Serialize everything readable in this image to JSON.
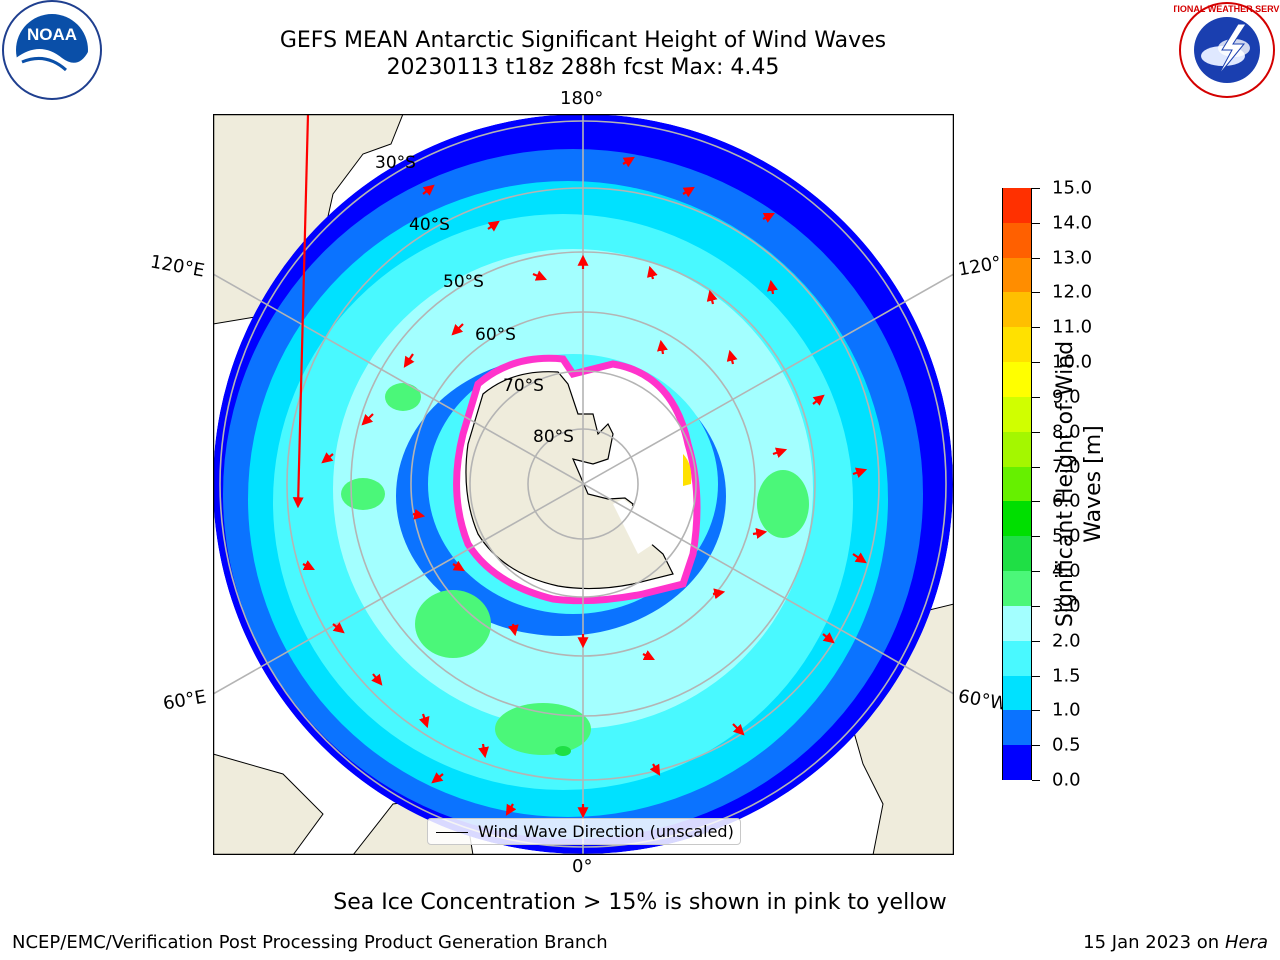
{
  "header": {
    "title_line1": "GEFS MEAN Antarctic Significant Height of Wind Waves",
    "title_line2": "20230113 t18z 288h fcst   Max: 4.45"
  },
  "logos": {
    "left": {
      "icon": "noaa-logo-icon",
      "text": "NOAA"
    },
    "right": {
      "icon": "national-weather-service-logo-icon",
      "text": "NATIONAL WEATHER SERVICE"
    }
  },
  "map": {
    "longitude_labels": {
      "top": "180°",
      "bottom": "0°",
      "upper_left": "120°E",
      "upper_right": "120°",
      "lower_left": "60°E",
      "lower_right": "60°W"
    },
    "latitude_labels": [
      "30°S",
      "40°S",
      "50°S",
      "60°S",
      "70°S",
      "80°S"
    ],
    "legend_text": "Wind Wave Direction (unscaled)",
    "colors": {
      "land": "#efecdc",
      "ocean_background": "#0000ff",
      "arrow": "#ff0000",
      "grid": "#b4b4b4"
    }
  },
  "colorbar": {
    "label": "Significant Height of Wind Waves [m]",
    "ticks": [
      "0.0",
      "0.5",
      "1.0",
      "1.5",
      "2.0",
      "3.0",
      "4.0",
      "5.0",
      "6.0",
      "7.0",
      "8.0",
      "9.0",
      "10.0",
      "11.0",
      "12.0",
      "13.0",
      "14.0",
      "15.0"
    ],
    "colors": [
      "#0000ff",
      "#0b73ff",
      "#00e1ff",
      "#49f9ff",
      "#a3ffff",
      "#4bf779",
      "#1fdf45",
      "#00df00",
      "#66f000",
      "#a4f700",
      "#d0ff00",
      "#ffff00",
      "#ffe100",
      "#ffbf00",
      "#ff8d00",
      "#ff6000",
      "#ff3000",
      "#ff0000"
    ]
  },
  "footer": {
    "caption": "Sea Ice Concentration > 15% is shown in pink to yellow",
    "left": "NCEP/EMC/Verification Post Processing Product Generation Branch",
    "right_prefix": "15 Jan 2023 on ",
    "right_machine": "Hera"
  }
}
